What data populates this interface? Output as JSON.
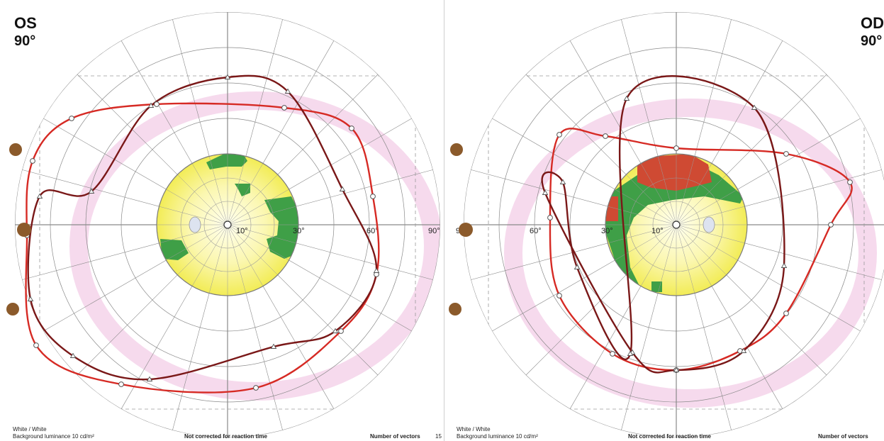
{
  "left_panel": {
    "eye": "OS",
    "degree": "90°",
    "ring_labels": [
      "10°",
      "30°",
      "60°",
      "90°"
    ],
    "footer": {
      "stimulus": "White / White",
      "luminance": "Background luminance 10 cd/m²",
      "correction": "Not corrected for reaction time",
      "vectors_label": "Number of vectors",
      "vectors_value": "15"
    }
  },
  "right_panel": {
    "eye": "OD",
    "degree": "90°",
    "ring_labels": [
      "10°",
      "30°",
      "60°",
      "90°"
    ],
    "footer": {
      "stimulus": "White / White",
      "luminance": "Background luminance 10 cd/m²",
      "correction": "Not corrected for reaction time",
      "vectors_label": "Number of vectors"
    }
  },
  "colors": {
    "isopter_red": "#d62a24",
    "isopter_dark": "#7a1818",
    "grid": "#8a8a8a",
    "central_yellow": "#f2ec56",
    "central_green": "#3f9f47",
    "central_red": "#cf4a33",
    "blind_spot": "#dde3f0",
    "pink_tint": "#f4d4ea",
    "marker_brown": "#8b5a2b"
  }
}
